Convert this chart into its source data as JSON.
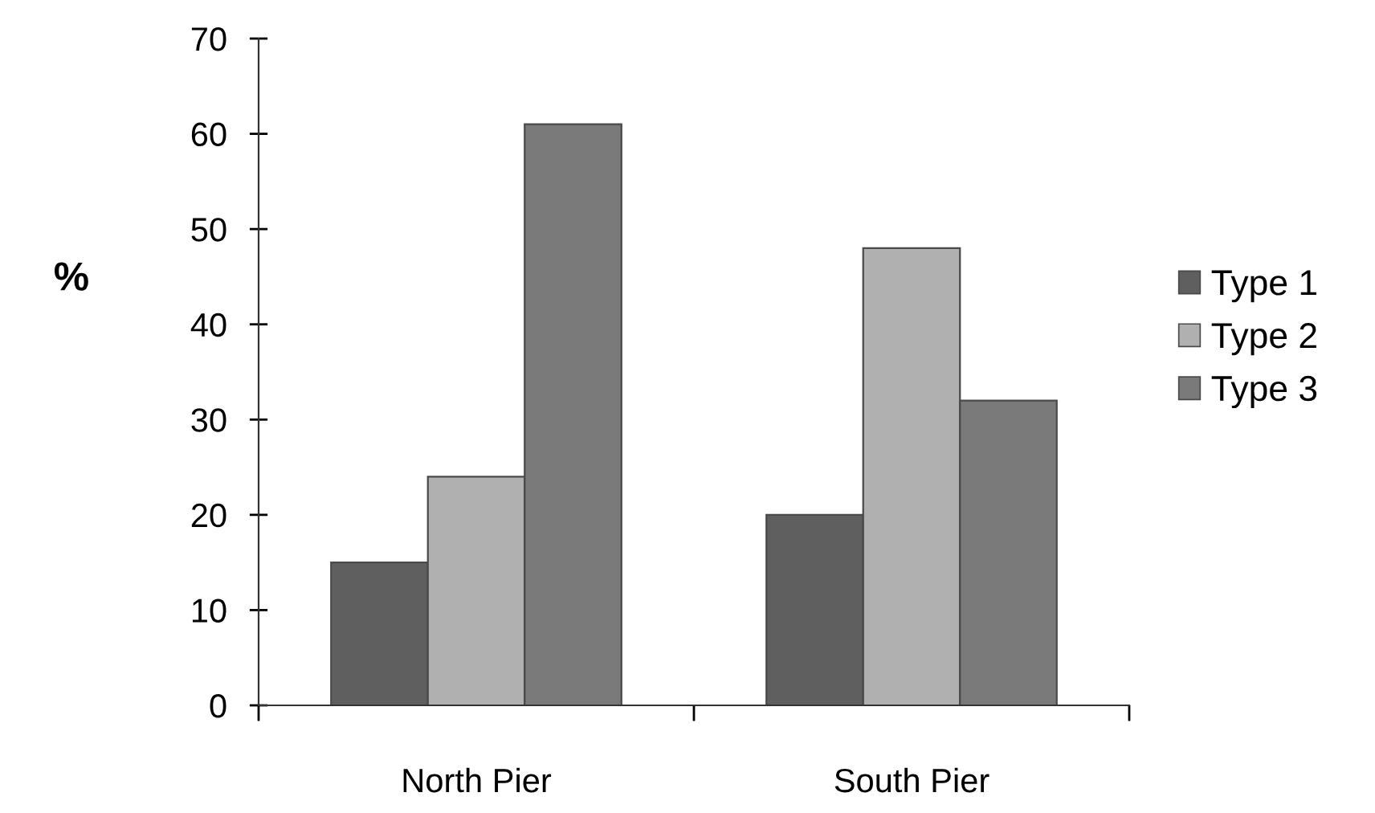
{
  "chart_data": {
    "type": "bar",
    "ylabel": "%",
    "categories": [
      "North Pier",
      "South Pier"
    ],
    "series": [
      {
        "name": "Type 1",
        "color": "#5f5f5f",
        "values": [
          15,
          20
        ]
      },
      {
        "name": "Type 2",
        "color": "#b0b0b0",
        "values": [
          24,
          48
        ]
      },
      {
        "name": "Type 3",
        "color": "#7a7a7a",
        "values": [
          61,
          32
        ]
      }
    ],
    "ylim": [
      0,
      70
    ],
    "yticks": [
      0,
      10,
      20,
      30,
      40,
      50,
      60,
      70
    ],
    "grid": false,
    "legend": "right"
  }
}
